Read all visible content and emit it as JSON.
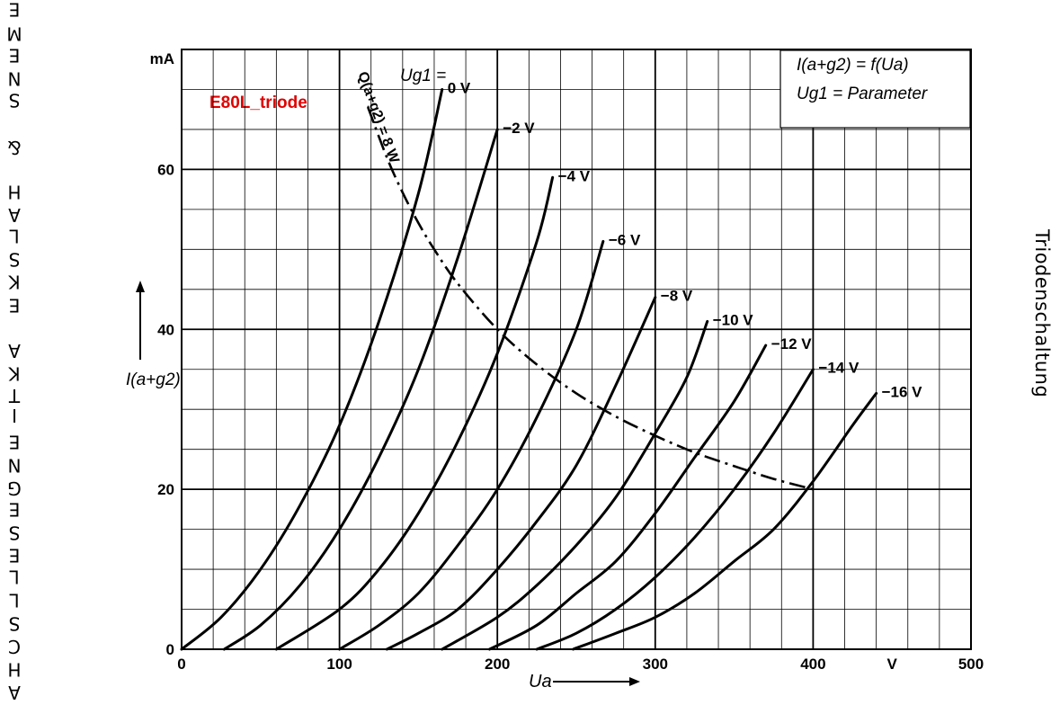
{
  "page": {
    "left_margin_text": "EMENS & HALSKE AKTIENGESELLSCHA",
    "right_title": "Triodenschaltung",
    "overlay_label": "E80L_triode"
  },
  "chart_data": {
    "type": "line",
    "title": "",
    "formula_line1": "I(a+g2) = f(Ua)",
    "formula_line2": "Ug1 = Parameter",
    "xlabel": "Ua",
    "ylabel": "I(a+g2)",
    "x_unit": "V",
    "y_unit": "mA",
    "xlim": [
      0,
      500
    ],
    "ylim": [
      0,
      75
    ],
    "x_ticks": [
      0,
      100,
      200,
      300,
      400,
      500
    ],
    "y_ticks": [
      0,
      20,
      40,
      60
    ],
    "grid": true,
    "series": [
      {
        "name": "Ug1 = 0 V",
        "label": "0 V",
        "x": [
          0,
          25,
          50,
          75,
          100,
          125,
          150,
          165
        ],
        "y": [
          0,
          4,
          10,
          18,
          28,
          41,
          57,
          70
        ]
      },
      {
        "name": "-2 V",
        "label": "−2 V",
        "x": [
          27,
          50,
          75,
          100,
          125,
          150,
          175,
          200
        ],
        "y": [
          0,
          3,
          8,
          15,
          24,
          35,
          49,
          65
        ]
      },
      {
        "name": "-4 V",
        "label": "−4 V",
        "x": [
          60,
          100,
          125,
          150,
          175,
          200,
          225,
          235
        ],
        "y": [
          0,
          5,
          10,
          17,
          26,
          37,
          51,
          59
        ]
      },
      {
        "name": "-6 V",
        "label": "−6 V",
        "x": [
          100,
          125,
          150,
          175,
          200,
          225,
          250,
          267
        ],
        "y": [
          0,
          3,
          7,
          13,
          20,
          29,
          40,
          51
        ]
      },
      {
        "name": "-8 V",
        "label": "−8 V",
        "x": [
          130,
          150,
          175,
          200,
          225,
          250,
          275,
          300
        ],
        "y": [
          0,
          2,
          5,
          10,
          16,
          23,
          33,
          44
        ]
      },
      {
        "name": "-10 V",
        "label": "−10 V",
        "x": [
          165,
          200,
          225,
          250,
          275,
          300,
          320,
          333
        ],
        "y": [
          0,
          4,
          8,
          13,
          19,
          27,
          34,
          41
        ]
      },
      {
        "name": "-12 V",
        "label": "−12 V",
        "x": [
          195,
          225,
          250,
          275,
          300,
          325,
          350,
          370
        ],
        "y": [
          0,
          3,
          7,
          11,
          17,
          24,
          31,
          38
        ]
      },
      {
        "name": "-14 V",
        "label": "−14 V",
        "x": [
          225,
          250,
          275,
          300,
          325,
          350,
          375,
          400
        ],
        "y": [
          0,
          2,
          5,
          9,
          14,
          20,
          27,
          35
        ]
      },
      {
        "name": "-16 V",
        "label": "−16 V",
        "x": [
          248,
          275,
          300,
          325,
          350,
          375,
          400,
          425,
          440
        ],
        "y": [
          0,
          2,
          4,
          7,
          11,
          15,
          21,
          28,
          32
        ]
      }
    ],
    "power_limit": {
      "label": "Q(a+g2) = 8 W",
      "x": [
        118,
        130,
        140,
        150,
        160,
        175,
        200,
        225,
        250,
        275,
        300,
        325,
        350,
        375,
        400
      ],
      "y": [
        67.8,
        61.5,
        57.1,
        53.3,
        50,
        45.7,
        40,
        35.6,
        32,
        29.1,
        26.7,
        24.6,
        22.9,
        21.3,
        20
      ]
    }
  }
}
